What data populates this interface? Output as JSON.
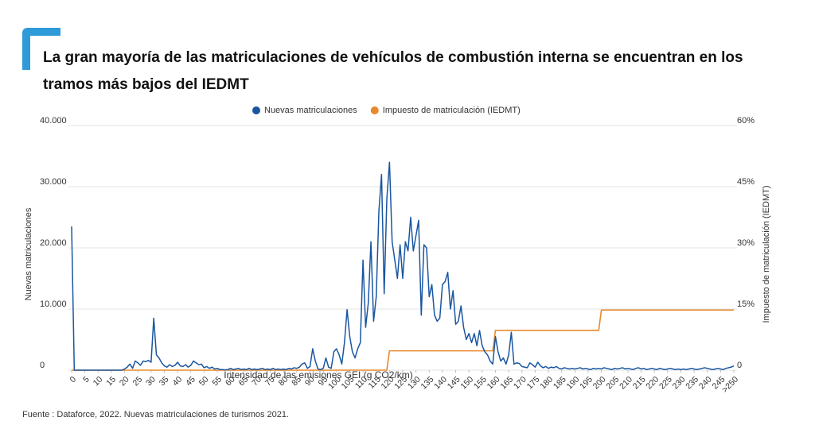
{
  "chart_data": {
    "type": "line",
    "title": "La gran mayoría de las matriculaciones de vehículos de combustión interna se encuentran en los tramos más bajos del IEDMT",
    "xlabel": "Intensidad de las emisiones GEI (g CO2/km)",
    "ylabel": "Nuevas matriculaciones",
    "y2label": "Impuesto de matriculación (IEDMT)",
    "source": "Fuente : Dataforce, 2022. Nuevas matriculaciones de turismos 2021.",
    "grid": true,
    "legend": "top",
    "x": [
      0,
      1,
      2,
      3,
      4,
      5,
      6,
      7,
      8,
      9,
      10,
      11,
      12,
      13,
      14,
      15,
      16,
      17,
      18,
      19,
      20,
      21,
      22,
      23,
      24,
      25,
      26,
      27,
      28,
      29,
      30,
      31,
      32,
      33,
      34,
      35,
      36,
      37,
      38,
      39,
      40,
      41,
      42,
      43,
      44,
      45,
      46,
      47,
      48,
      49,
      50,
      51,
      52,
      53,
      54,
      55,
      56,
      57,
      58,
      59,
      60,
      61,
      62,
      63,
      64,
      65,
      66,
      67,
      68,
      69,
      70,
      71,
      72,
      73,
      74,
      75,
      76,
      77,
      78,
      79,
      80,
      81,
      82,
      83,
      84,
      85,
      86,
      87,
      88,
      89,
      90,
      91,
      92,
      93,
      94,
      95,
      96,
      97,
      98,
      99,
      100,
      101,
      102,
      103,
      104,
      105,
      106,
      107,
      108,
      109,
      110,
      111,
      112,
      113,
      114,
      115,
      116,
      117,
      118,
      119,
      120,
      121,
      122,
      123,
      124,
      125,
      126,
      127,
      128,
      129,
      130,
      131,
      132,
      133,
      134,
      135,
      136,
      137,
      138,
      139,
      140,
      141,
      142,
      143,
      144,
      145,
      146,
      147,
      148,
      149,
      150,
      151,
      152,
      153,
      154,
      155,
      156,
      157,
      158,
      159,
      160,
      161,
      162,
      163,
      164,
      165,
      166,
      167,
      168,
      169,
      170,
      171,
      172,
      173,
      174,
      175,
      176,
      177,
      178,
      179,
      180,
      181,
      182,
      183,
      184,
      185,
      186,
      187,
      188,
      189,
      190,
      191,
      192,
      193,
      194,
      195,
      196,
      197,
      198,
      199,
      200,
      201,
      202,
      203,
      204,
      205,
      206,
      207,
      208,
      209,
      210,
      211,
      212,
      213,
      214,
      215,
      216,
      217,
      218,
      219,
      220,
      221,
      222,
      223,
      224,
      225,
      226,
      227,
      228,
      229,
      230,
      231,
      232,
      233,
      234,
      235,
      236,
      237,
      238,
      239,
      240,
      241,
      242,
      243,
      244,
      245,
      246,
      247,
      248,
      249,
      250
    ],
    "xlim": [
      0,
      250
    ],
    "xticks": [
      0,
      5,
      10,
      15,
      20,
      25,
      30,
      35,
      40,
      45,
      50,
      55,
      60,
      65,
      70,
      75,
      80,
      85,
      90,
      95,
      100,
      105,
      110,
      115,
      120,
      125,
      130,
      135,
      140,
      145,
      150,
      155,
      160,
      165,
      170,
      175,
      180,
      185,
      190,
      195,
      200,
      205,
      210,
      215,
      220,
      225,
      230,
      235,
      240,
      245,
      {
        "value": 250,
        "label": ">250"
      }
    ],
    "ylim": [
      0,
      40000
    ],
    "yticks": [
      0,
      {
        "value": 10000,
        "label": "10.000"
      },
      {
        "value": 20000,
        "label": "20.000"
      },
      {
        "value": 30000,
        "label": "30.000"
      },
      {
        "value": 40000,
        "label": "40.000"
      }
    ],
    "y2lim": [
      0,
      60
    ],
    "y2ticks": [
      0,
      {
        "value": 15,
        "label": "15%"
      },
      {
        "value": 30,
        "label": "30%"
      },
      {
        "value": 45,
        "label": "45%"
      },
      {
        "value": 60,
        "label": "60%"
      }
    ],
    "series": [
      {
        "name": "Nuevas matriculaciones",
        "color": "#1a56a0",
        "values": [
          23500,
          0,
          0,
          0,
          0,
          0,
          0,
          0,
          0,
          0,
          0,
          0,
          0,
          0,
          0,
          0,
          0,
          0,
          0,
          0,
          200,
          500,
          1000,
          300,
          1500,
          1200,
          800,
          1500,
          1400,
          1600,
          1300,
          8500,
          2500,
          2000,
          1200,
          700,
          500,
          900,
          600,
          800,
          1300,
          700,
          600,
          900,
          500,
          800,
          1500,
          1200,
          900,
          1000,
          400,
          600,
          300,
          500,
          200,
          300,
          100,
          100,
          50,
          100,
          300,
          100,
          200,
          300,
          100,
          200,
          100,
          300,
          100,
          200,
          100,
          200,
          300,
          100,
          200,
          100,
          300,
          100,
          200,
          100,
          200,
          100,
          300,
          200,
          400,
          300,
          500,
          1000,
          1200,
          300,
          600,
          3500,
          1500,
          200,
          100,
          300,
          2000,
          500,
          300,
          3000,
          3500,
          2500,
          1000,
          4500,
          9900,
          5500,
          3000,
          2000,
          3500,
          4500,
          18000,
          7000,
          11000,
          21000,
          8000,
          12000,
          26000,
          32000,
          12500,
          28000,
          34000,
          21000,
          18000,
          15000,
          20500,
          15000,
          21000,
          19500,
          25000,
          19500,
          22000,
          24500,
          9000,
          20500,
          20000,
          12000,
          14000,
          9000,
          8000,
          8500,
          14000,
          14500,
          16000,
          10000,
          13000,
          7500,
          8000,
          10500,
          7000,
          5000,
          6000,
          4500,
          6000,
          4000,
          6500,
          4000,
          3000,
          2500,
          1500,
          1000,
          5500,
          3000,
          1500,
          2000,
          1000,
          2500,
          6200,
          1000,
          1200,
          1100,
          600,
          500,
          400,
          1200,
          900,
          500,
          1300,
          700,
          400,
          600,
          300,
          500,
          400,
          600,
          300,
          200,
          400,
          300,
          200,
          300,
          200,
          300,
          400,
          200,
          300,
          200,
          100,
          300,
          200,
          300,
          200,
          400,
          300,
          200,
          100,
          300,
          200,
          300,
          400,
          200,
          300,
          200,
          100,
          300,
          400,
          200,
          300,
          100,
          200,
          300,
          200,
          100,
          300,
          200,
          100,
          200,
          300,
          200,
          100,
          200,
          100,
          200,
          100,
          200,
          300,
          200,
          100,
          200,
          300,
          400,
          300,
          200,
          100,
          200,
          300,
          200,
          100,
          300,
          400,
          500,
          700
        ]
      },
      {
        "name": "Impuesto de matriculación (IEDMT)",
        "color": "#e8892b",
        "axis": "y2",
        "values": [
          0,
          0,
          0,
          0,
          0,
          0,
          0,
          0,
          0,
          0,
          0,
          0,
          0,
          0,
          0,
          0,
          0,
          0,
          0,
          0,
          0,
          0,
          0,
          0,
          0,
          0,
          0,
          0,
          0,
          0,
          0,
          0,
          0,
          0,
          0,
          0,
          0,
          0,
          0,
          0,
          0,
          0,
          0,
          0,
          0,
          0,
          0,
          0,
          0,
          0,
          0,
          0,
          0,
          0,
          0,
          0,
          0,
          0,
          0,
          0,
          0,
          0,
          0,
          0,
          0,
          0,
          0,
          0,
          0,
          0,
          0,
          0,
          0,
          0,
          0,
          0,
          0,
          0,
          0,
          0,
          0,
          0,
          0,
          0,
          0,
          0,
          0,
          0,
          0,
          0,
          0,
          0,
          0,
          0,
          0,
          0,
          0,
          0,
          0,
          0,
          0,
          0,
          0,
          0,
          0,
          0,
          0,
          0,
          0,
          0,
          0,
          0,
          0,
          0,
          0,
          0,
          0,
          0,
          0,
          0,
          4.75,
          4.75,
          4.75,
          4.75,
          4.75,
          4.75,
          4.75,
          4.75,
          4.75,
          4.75,
          4.75,
          4.75,
          4.75,
          4.75,
          4.75,
          4.75,
          4.75,
          4.75,
          4.75,
          4.75,
          4.75,
          4.75,
          4.75,
          4.75,
          4.75,
          4.75,
          4.75,
          4.75,
          4.75,
          4.75,
          4.75,
          4.75,
          4.75,
          4.75,
          4.75,
          4.75,
          4.75,
          4.75,
          4.75,
          4.75,
          9.75,
          9.75,
          9.75,
          9.75,
          9.75,
          9.75,
          9.75,
          9.75,
          9.75,
          9.75,
          9.75,
          9.75,
          9.75,
          9.75,
          9.75,
          9.75,
          9.75,
          9.75,
          9.75,
          9.75,
          9.75,
          9.75,
          9.75,
          9.75,
          9.75,
          9.75,
          9.75,
          9.75,
          9.75,
          9.75,
          9.75,
          9.75,
          9.75,
          9.75,
          9.75,
          9.75,
          9.75,
          9.75,
          9.75,
          9.75,
          14.75,
          14.75,
          14.75,
          14.75,
          14.75,
          14.75,
          14.75,
          14.75,
          14.75,
          14.75,
          14.75,
          14.75,
          14.75,
          14.75,
          14.75,
          14.75,
          14.75,
          14.75,
          14.75,
          14.75,
          14.75,
          14.75,
          14.75,
          14.75,
          14.75,
          14.75,
          14.75,
          14.75,
          14.75,
          14.75,
          14.75,
          14.75,
          14.75,
          14.75,
          14.75,
          14.75,
          14.75,
          14.75,
          14.75,
          14.75,
          14.75,
          14.75,
          14.75,
          14.75,
          14.75,
          14.75,
          14.75,
          14.75,
          14.75,
          14.75,
          14.75
        ]
      }
    ]
  }
}
